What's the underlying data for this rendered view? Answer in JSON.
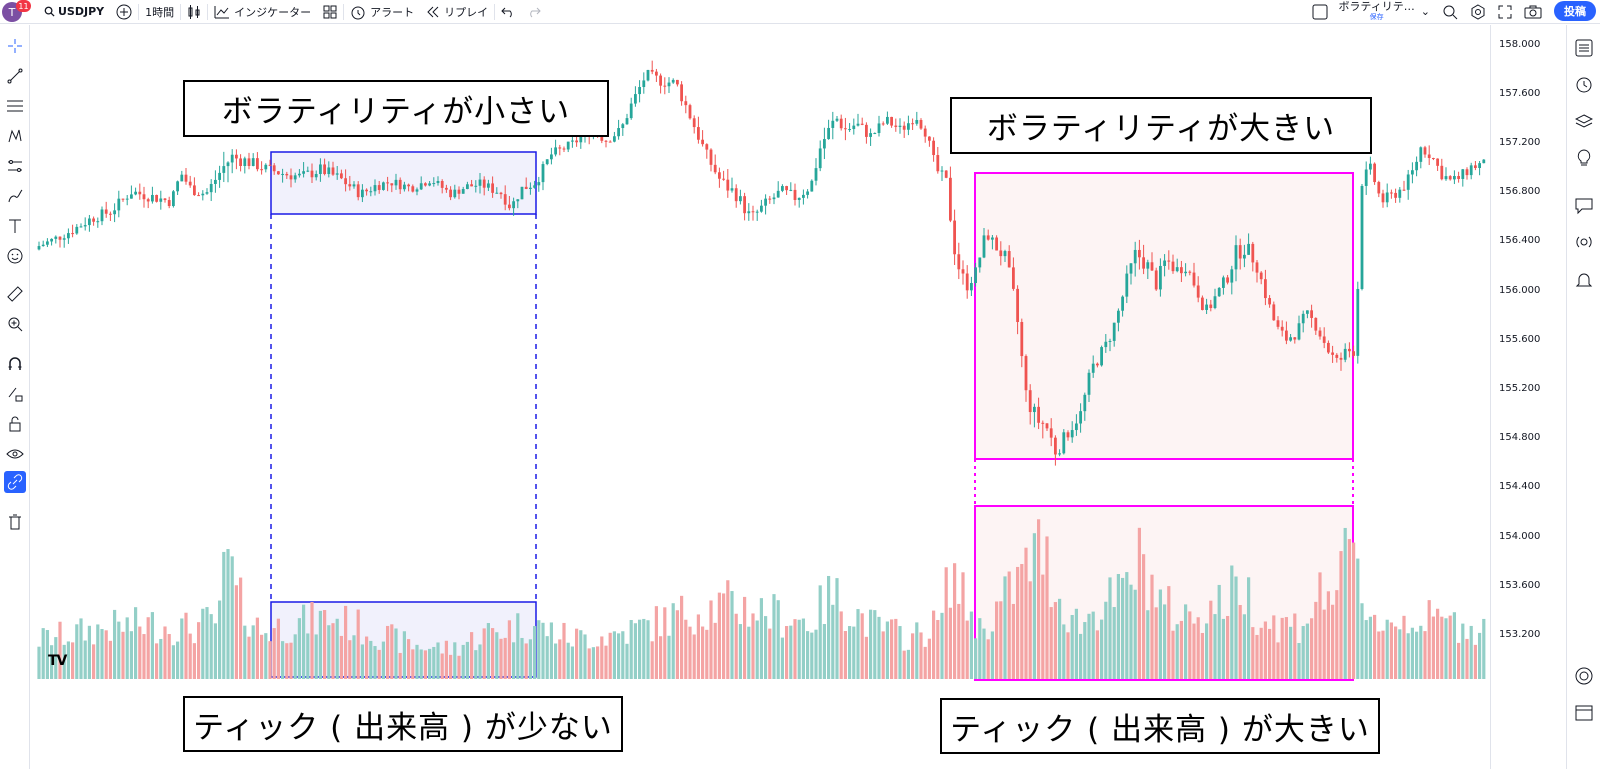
{
  "topbar": {
    "avatar_letter": "T",
    "notification_count": "11",
    "symbol": "USDJPY",
    "interval": "1時間",
    "indicators_label": "インジケーター",
    "alert_label": "アラート",
    "replay_label": "リプレイ",
    "layout_name": "ボラティリテ…",
    "layout_save_label": "保存",
    "post_label": "投稿"
  },
  "price_axis": {
    "labels": [
      "158.000",
      "157.600",
      "157.200",
      "156.800",
      "156.400",
      "156.000",
      "155.600",
      "155.200",
      "154.800",
      "154.400",
      "154.000",
      "153.600",
      "153.200"
    ]
  },
  "annotations": {
    "low_volatility": "ボラティリティが小さい",
    "high_volatility": "ボラティリティが大きい",
    "low_tick": "ティック ( 出来高 ) が少ない",
    "high_tick": "ティック ( 出来高 ) が大きい"
  },
  "colors": {
    "up": "#26a69a",
    "down": "#ef5350",
    "vol_up": "#93cfc7",
    "vol_down": "#f4a4a4",
    "low_box": "#1a1ae6",
    "high_box": "#ff00ff",
    "accent": "#2962ff"
  },
  "chart_data": {
    "type": "candlestick",
    "symbol": "USDJPY",
    "interval": "1時間",
    "ylim": [
      153.0,
      158.2
    ],
    "price_path": [
      [
        0,
        156.33
      ],
      [
        20,
        156.4
      ],
      [
        40,
        156.48
      ],
      [
        60,
        156.58
      ],
      [
        80,
        156.64
      ],
      [
        100,
        156.8
      ],
      [
        120,
        156.76
      ],
      [
        140,
        156.72
      ],
      [
        150,
        156.95
      ],
      [
        160,
        156.82
      ],
      [
        175,
        156.78
      ],
      [
        190,
        156.97
      ],
      [
        200,
        157.08
      ],
      [
        215,
        157.05
      ],
      [
        230,
        157.0
      ],
      [
        250,
        156.95
      ],
      [
        270,
        156.92
      ],
      [
        290,
        156.98
      ],
      [
        310,
        156.9
      ],
      [
        330,
        156.78
      ],
      [
        345,
        156.85
      ],
      [
        360,
        156.88
      ],
      [
        380,
        156.83
      ],
      [
        400,
        156.9
      ],
      [
        420,
        156.78
      ],
      [
        435,
        156.84
      ],
      [
        450,
        156.86
      ],
      [
        470,
        156.79
      ],
      [
        480,
        156.67
      ],
      [
        490,
        156.82
      ],
      [
        505,
        156.88
      ],
      [
        520,
        157.1
      ],
      [
        540,
        157.18
      ],
      [
        560,
        157.3
      ],
      [
        575,
        157.22
      ],
      [
        590,
        157.3
      ],
      [
        600,
        157.5
      ],
      [
        615,
        157.75
      ],
      [
        630,
        157.7
      ],
      [
        645,
        157.68
      ],
      [
        660,
        157.4
      ],
      [
        675,
        157.1
      ],
      [
        690,
        156.88
      ],
      [
        705,
        156.78
      ],
      [
        720,
        156.58
      ],
      [
        735,
        156.7
      ],
      [
        750,
        156.8
      ],
      [
        765,
        156.75
      ],
      [
        780,
        156.85
      ],
      [
        790,
        157.18
      ],
      [
        805,
        157.4
      ],
      [
        815,
        157.3
      ],
      [
        825,
        157.35
      ],
      [
        840,
        157.25
      ],
      [
        855,
        157.38
      ],
      [
        870,
        157.3
      ],
      [
        885,
        157.42
      ],
      [
        895,
        157.28
      ],
      [
        905,
        156.98
      ],
      [
        915,
        156.88
      ],
      [
        925,
        156.25
      ],
      [
        935,
        156.03
      ],
      [
        945,
        156.15
      ],
      [
        955,
        156.47
      ],
      [
        965,
        156.35
      ],
      [
        975,
        156.25
      ],
      [
        985,
        155.85
      ],
      [
        995,
        155.15
      ],
      [
        1005,
        154.95
      ],
      [
        1015,
        154.9
      ],
      [
        1025,
        154.68
      ],
      [
        1035,
        154.82
      ],
      [
        1050,
        155.0
      ],
      [
        1060,
        155.35
      ],
      [
        1075,
        155.55
      ],
      [
        1085,
        155.75
      ],
      [
        1095,
        156.05
      ],
      [
        1105,
        156.3
      ],
      [
        1115,
        156.22
      ],
      [
        1125,
        156.05
      ],
      [
        1135,
        156.25
      ],
      [
        1145,
        156.16
      ],
      [
        1155,
        156.2
      ],
      [
        1165,
        156.02
      ],
      [
        1175,
        155.82
      ],
      [
        1185,
        155.95
      ],
      [
        1195,
        156.08
      ],
      [
        1205,
        156.3
      ],
      [
        1215,
        156.35
      ],
      [
        1225,
        156.22
      ],
      [
        1235,
        155.95
      ],
      [
        1245,
        155.7
      ],
      [
        1255,
        155.6
      ],
      [
        1265,
        155.65
      ],
      [
        1275,
        155.8
      ],
      [
        1285,
        155.72
      ],
      [
        1295,
        155.55
      ],
      [
        1305,
        155.4
      ],
      [
        1315,
        155.48
      ],
      [
        1325,
        155.55
      ],
      [
        1330,
        156.88
      ],
      [
        1340,
        156.98
      ],
      [
        1350,
        156.72
      ],
      [
        1360,
        156.76
      ],
      [
        1370,
        156.82
      ],
      [
        1380,
        156.92
      ],
      [
        1390,
        157.16
      ],
      [
        1400,
        157.1
      ],
      [
        1410,
        156.95
      ],
      [
        1420,
        156.88
      ],
      [
        1430,
        156.92
      ],
      [
        1440,
        157.0
      ],
      [
        1449,
        157.02
      ]
    ],
    "volume_path": [
      [
        0,
        0.28
      ],
      [
        40,
        0.33
      ],
      [
        80,
        0.38
      ],
      [
        120,
        0.4
      ],
      [
        160,
        0.37
      ],
      [
        190,
        0.45
      ],
      [
        195,
        1.0
      ],
      [
        205,
        0.6
      ],
      [
        230,
        0.35
      ],
      [
        260,
        0.4
      ],
      [
        300,
        0.45
      ],
      [
        340,
        0.35
      ],
      [
        380,
        0.25
      ],
      [
        420,
        0.22
      ],
      [
        460,
        0.35
      ],
      [
        500,
        0.4
      ],
      [
        540,
        0.3
      ],
      [
        580,
        0.32
      ],
      [
        620,
        0.4
      ],
      [
        660,
        0.5
      ],
      [
        700,
        0.55
      ],
      [
        740,
        0.48
      ],
      [
        780,
        0.42
      ],
      [
        800,
        0.62
      ],
      [
        840,
        0.4
      ],
      [
        880,
        0.3
      ],
      [
        910,
        0.42
      ],
      [
        920,
        0.82
      ],
      [
        930,
        0.62
      ],
      [
        950,
        0.35
      ],
      [
        970,
        0.55
      ],
      [
        990,
        0.75
      ],
      [
        1010,
        0.98
      ],
      [
        1030,
        0.55
      ],
      [
        1050,
        0.4
      ],
      [
        1070,
        0.55
      ],
      [
        1090,
        0.6
      ],
      [
        1110,
        0.88
      ],
      [
        1130,
        0.55
      ],
      [
        1150,
        0.45
      ],
      [
        1170,
        0.5
      ],
      [
        1190,
        0.55
      ],
      [
        1210,
        0.7
      ],
      [
        1230,
        0.45
      ],
      [
        1250,
        0.4
      ],
      [
        1270,
        0.4
      ],
      [
        1290,
        0.62
      ],
      [
        1310,
        0.7
      ],
      [
        1320,
        1.0
      ],
      [
        1330,
        0.6
      ],
      [
        1350,
        0.4
      ],
      [
        1380,
        0.45
      ],
      [
        1410,
        0.42
      ],
      [
        1449,
        0.38
      ]
    ]
  }
}
